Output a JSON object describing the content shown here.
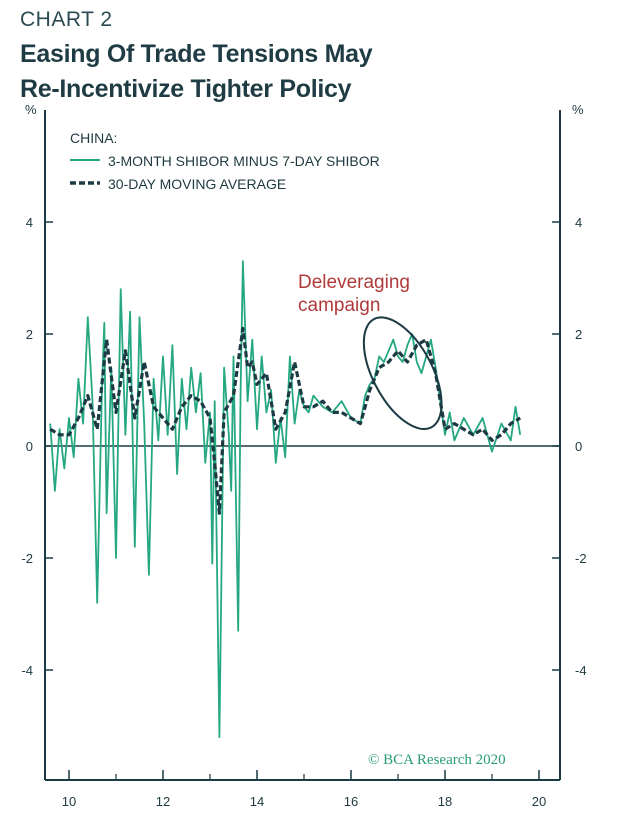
{
  "header": {
    "chart_number": "CHART 2",
    "title_line1": "Easing Of Trade Tensions May",
    "title_line2": "Re-Incentivize Tighter Policy"
  },
  "source": "© BCA Research 2020",
  "colors": {
    "series": "#25a882",
    "ma": "#1b3a44",
    "axis": "#1b3a44",
    "annotation": "#b03a3a",
    "ellipse": "#1b3a44"
  },
  "chart_data": {
    "type": "line",
    "title": "Easing Of Trade Tensions May Re-Incentivize Tighter Policy",
    "ylabel_left": "%",
    "ylabel_right": "%",
    "legend_title": "CHINA:",
    "xlim": [
      2009.5,
      2020.2
    ],
    "ylim": [
      -6,
      4.8
    ],
    "x_ticks": [
      10,
      12,
      14,
      16,
      18,
      20
    ],
    "y_ticks": [
      4,
      2,
      0,
      -2,
      -4
    ],
    "annotation": {
      "text_line1": "Deleveraging",
      "text_line2": "campaign",
      "x_range": [
        2016.3,
        2017.9
      ],
      "y_range": [
        0.35,
        2.25
      ]
    },
    "series": [
      {
        "name": "3-MONTH SHIBOR MINUS 7-DAY SHIBOR",
        "style": "solid",
        "x": [
          2009.6,
          2009.7,
          2009.8,
          2009.9,
          2010.0,
          2010.1,
          2010.2,
          2010.3,
          2010.4,
          2010.5,
          2010.6,
          2010.7,
          2010.75,
          2010.8,
          2010.9,
          2011.0,
          2011.1,
          2011.2,
          2011.3,
          2011.4,
          2011.5,
          2011.6,
          2011.7,
          2011.8,
          2011.9,
          2012.0,
          2012.1,
          2012.2,
          2012.3,
          2012.4,
          2012.5,
          2012.6,
          2012.7,
          2012.8,
          2012.9,
          2013.0,
          2013.05,
          2013.1,
          2013.2,
          2013.3,
          2013.4,
          2013.45,
          2013.5,
          2013.6,
          2013.65,
          2013.7,
          2013.8,
          2013.9,
          2014.0,
          2014.1,
          2014.2,
          2014.3,
          2014.4,
          2014.5,
          2014.6,
          2014.7,
          2014.8,
          2014.9,
          2015.0,
          2015.1,
          2015.2,
          2015.4,
          2015.6,
          2015.8,
          2016.0,
          2016.2,
          2016.3,
          2016.4,
          2016.5,
          2016.6,
          2016.7,
          2016.8,
          2016.9,
          2017.0,
          2017.1,
          2017.2,
          2017.3,
          2017.4,
          2017.5,
          2017.6,
          2017.7,
          2017.8,
          2017.9,
          2018.0,
          2018.1,
          2018.2,
          2018.4,
          2018.6,
          2018.8,
          2019.0,
          2019.2,
          2019.4,
          2019.5,
          2019.6
        ],
        "values": [
          0.4,
          -0.8,
          0.3,
          -0.4,
          0.5,
          -0.2,
          1.2,
          0.4,
          2.3,
          0.8,
          -2.8,
          1.0,
          2.2,
          -1.2,
          1.4,
          -2.0,
          2.8,
          0.2,
          2.4,
          -1.8,
          2.3,
          0.4,
          -2.3,
          1.2,
          0.1,
          1.6,
          0.2,
          1.8,
          -0.5,
          1.2,
          0.3,
          1.4,
          0.6,
          1.3,
          -0.3,
          0.6,
          -2.1,
          0.8,
          -5.2,
          1.4,
          0.2,
          -0.8,
          1.6,
          -3.3,
          1.0,
          3.3,
          0.8,
          1.9,
          0.3,
          1.6,
          0.6,
          1.0,
          -0.3,
          0.5,
          -0.2,
          1.6,
          0.4,
          1.0,
          0.7,
          0.6,
          0.9,
          0.7,
          0.6,
          0.8,
          0.5,
          0.4,
          0.9,
          1.1,
          1.2,
          1.6,
          1.5,
          1.7,
          1.9,
          1.6,
          1.5,
          1.8,
          2.0,
          1.5,
          1.3,
          1.6,
          1.9,
          1.4,
          0.8,
          0.2,
          0.6,
          0.1,
          0.5,
          0.2,
          0.5,
          -0.1,
          0.4,
          0.1,
          0.7,
          0.2
        ]
      },
      {
        "name": "30-DAY MOVING AVERAGE",
        "style": "dashed",
        "x": [
          2009.6,
          2009.8,
          2010.0,
          2010.2,
          2010.4,
          2010.6,
          2010.8,
          2011.0,
          2011.2,
          2011.4,
          2011.6,
          2011.8,
          2012.0,
          2012.2,
          2012.4,
          2012.6,
          2012.8,
          2013.0,
          2013.1,
          2013.2,
          2013.3,
          2013.5,
          2013.7,
          2013.8,
          2013.9,
          2014.0,
          2014.2,
          2014.4,
          2014.6,
          2014.8,
          2015.0,
          2015.2,
          2015.4,
          2015.6,
          2015.8,
          2016.0,
          2016.2,
          2016.4,
          2016.6,
          2016.8,
          2017.0,
          2017.2,
          2017.4,
          2017.6,
          2017.8,
          2018.0,
          2018.2,
          2018.4,
          2018.6,
          2018.8,
          2019.0,
          2019.2,
          2019.4,
          2019.6
        ],
        "values": [
          0.3,
          0.2,
          0.2,
          0.5,
          0.9,
          0.3,
          1.9,
          0.6,
          1.7,
          0.5,
          1.5,
          0.7,
          0.5,
          0.3,
          0.7,
          0.9,
          0.8,
          0.5,
          -0.3,
          -1.2,
          0.6,
          0.9,
          2.1,
          1.4,
          1.5,
          1.1,
          1.3,
          0.3,
          0.6,
          1.5,
          0.7,
          0.7,
          0.8,
          0.6,
          0.6,
          0.5,
          0.4,
          1.0,
          1.4,
          1.5,
          1.7,
          1.5,
          1.8,
          1.9,
          1.3,
          0.3,
          0.4,
          0.3,
          0.2,
          0.3,
          0.1,
          0.2,
          0.4,
          0.5
        ]
      }
    ]
  }
}
